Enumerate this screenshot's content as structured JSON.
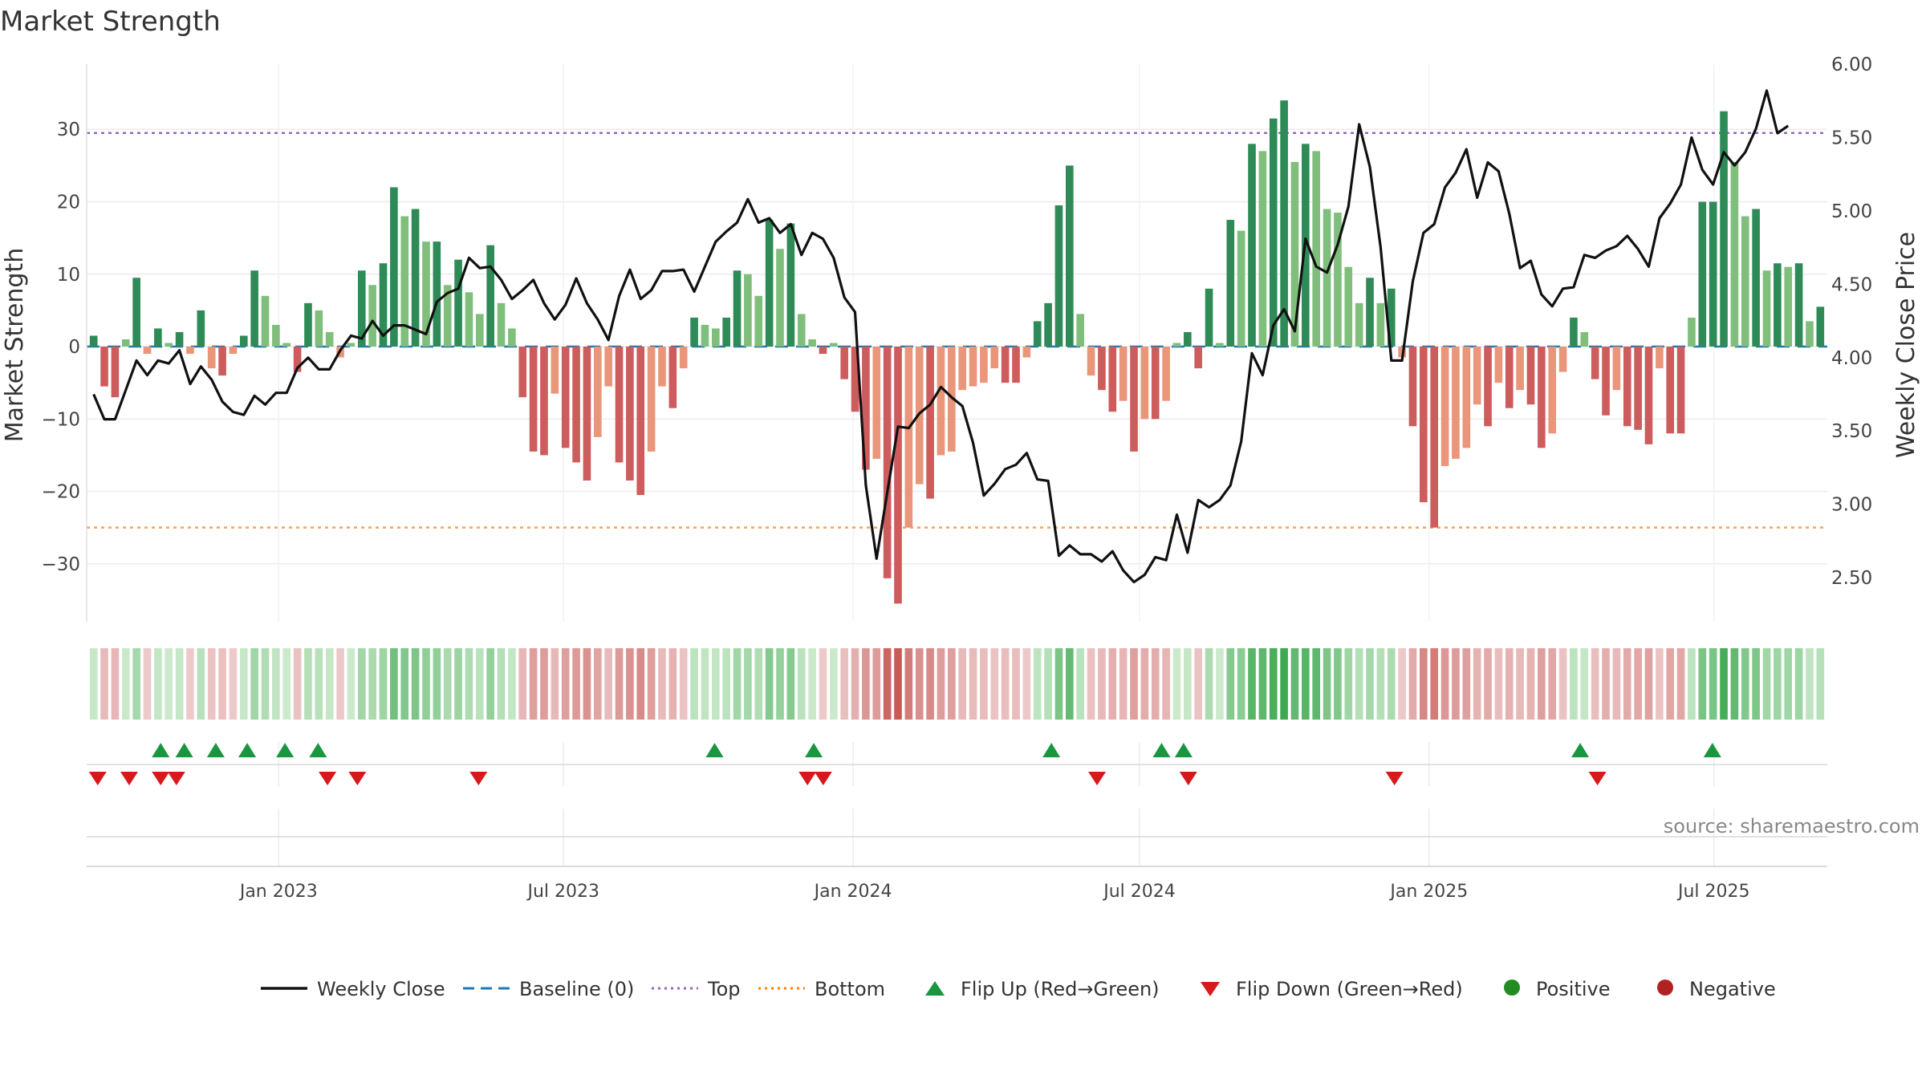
{
  "chart_data": {
    "type": "bar",
    "title": "Market Strength",
    "ylabel": "Market Strength",
    "y2label": "Weekly Close Price",
    "ylim": [
      -38,
      39
    ],
    "y2lim": [
      2.2,
      6.0
    ],
    "yticks": [
      30,
      20,
      10,
      0,
      -10,
      -20,
      -30
    ],
    "yticklabels": [
      "30",
      "20",
      "10",
      "0",
      "−10",
      "−20",
      "−30"
    ],
    "y2ticks": [
      6.0,
      5.5,
      5.0,
      4.5,
      4.0,
      3.5,
      3.0,
      2.5
    ],
    "y2ticklabels": [
      "6.00",
      "5.50",
      "5.00",
      "4.50",
      "4.00",
      "3.50",
      "3.00",
      "2.50"
    ],
    "x_start": "2022-09-02",
    "x_end": "2025-09-10",
    "x_ticks": [
      {
        "label": "Jan 2023",
        "date": "2023-01-01"
      },
      {
        "label": "Jul 2023",
        "date": "2023-07-01"
      },
      {
        "label": "Jan 2024",
        "date": "2024-01-01"
      },
      {
        "label": "Jul 2024",
        "date": "2024-07-01"
      },
      {
        "label": "Jan 2025",
        "date": "2025-01-01"
      },
      {
        "label": "Jul 2025",
        "date": "2025-07-01"
      }
    ],
    "top_level": 29.5,
    "bottom_level": -25,
    "baseline": 0,
    "strength": [
      1.5,
      -5.5,
      -7,
      1,
      9.5,
      -1,
      2.5,
      0.5,
      2,
      -1,
      5,
      -3,
      -4,
      -1,
      1.5,
      10.5,
      7,
      3,
      0.5,
      -3.5,
      6,
      5,
      2,
      -1.5,
      0.5,
      10.5,
      8.5,
      11.5,
      22,
      18,
      19,
      14.5,
      14.5,
      8.5,
      12,
      7.5,
      4.5,
      14,
      6,
      2.5,
      -7,
      -14.5,
      -15,
      -6.5,
      -14,
      -16,
      -18.5,
      -12.5,
      -5.5,
      -16,
      -18.5,
      -20.5,
      -14.5,
      -5.5,
      -8.5,
      -3,
      4,
      3,
      2.5,
      4,
      10.5,
      10,
      7,
      17.5,
      13.5,
      17,
      4.5,
      1,
      -1,
      0.5,
      -4.5,
      -9,
      -17,
      -15.5,
      -32,
      -35.5,
      -25,
      -19,
      -21,
      -15,
      -14.5,
      -6,
      -5.5,
      -5,
      -3,
      -5,
      -5,
      -1.5,
      3.5,
      6,
      19.5,
      25,
      4.5,
      -4,
      -6,
      -9,
      -7.5,
      -14.5,
      -10,
      -10,
      -7.5,
      0.5,
      2,
      -3,
      8,
      0.5,
      17.5,
      16,
      28,
      27,
      31.5,
      34,
      25.5,
      28,
      27,
      19,
      18.5,
      11,
      6,
      9.5,
      6,
      8,
      -1.5,
      -11,
      -21.5,
      -25,
      -16.5,
      -15.5,
      -14,
      -8,
      -11,
      -5,
      -8.5,
      -6,
      -8,
      -14,
      -12,
      -3.5,
      4,
      2,
      -4.5,
      -9.5,
      -6,
      -11,
      -11.5,
      -13.5,
      -3,
      -12,
      -12,
      4,
      20,
      20,
      32.5,
      25.5,
      18,
      19,
      10.5,
      11.5,
      11,
      11.5,
      3.5,
      5.5
    ],
    "weekly_close": [
      3.75,
      3.58,
      3.58,
      3.78,
      3.98,
      3.88,
      3.98,
      3.96,
      4.05,
      3.82,
      3.94,
      3.85,
      3.7,
      3.63,
      3.61,
      3.74,
      3.68,
      3.76,
      3.76,
      3.93,
      4,
      3.92,
      3.92,
      4.05,
      4.15,
      4.13,
      4.25,
      4.15,
      4.22,
      4.22,
      4.19,
      4.16,
      4.38,
      4.44,
      4.47,
      4.68,
      4.61,
      4.62,
      4.53,
      4.4,
      4.46,
      4.53,
      4.37,
      4.26,
      4.36,
      4.54,
      4.37,
      4.26,
      4.12,
      4.42,
      4.6,
      4.4,
      4.46,
      4.59,
      4.59,
      4.6,
      4.45,
      4.62,
      4.79,
      4.86,
      4.92,
      5.08,
      4.92,
      4.95,
      4.85,
      4.91,
      4.7,
      4.85,
      4.81,
      4.68,
      4.41,
      4.31,
      3.13,
      2.63,
      3.08,
      3.53,
      3.52,
      3.62,
      3.68,
      3.8,
      3.73,
      3.67,
      3.42,
      3.06,
      3.14,
      3.24,
      3.27,
      3.35,
      3.17,
      3.16,
      2.65,
      2.72,
      2.66,
      2.66,
      2.61,
      2.68,
      2.55,
      2.47,
      2.52,
      2.64,
      2.62,
      2.93,
      2.67,
      3.03,
      2.98,
      3.03,
      3.13,
      3.43,
      4.03,
      3.88,
      4.22,
      4.33,
      4.18,
      4.81,
      4.62,
      4.58,
      4.77,
      5.03,
      5.59,
      5.3,
      4.75,
      3.98,
      3.98,
      4.52,
      4.85,
      4.91,
      5.16,
      5.26,
      5.42,
      5.09,
      5.33,
      5.27,
      4.98,
      4.61,
      4.66,
      4.43,
      4.35,
      4.47,
      4.48,
      4.7,
      4.68,
      4.73,
      4.76,
      4.83,
      4.74,
      4.62,
      4.95,
      5.05,
      5.18,
      5.5,
      5.28,
      5.18,
      5.4,
      5.31,
      5.4,
      5.56,
      5.82,
      5.53,
      5.58
    ],
    "flip_up_dates": [
      "2022-10-18",
      "2022-11-02",
      "2022-11-22",
      "2022-12-12",
      "2023-01-05",
      "2023-01-26",
      "2023-10-05",
      "2023-12-07",
      "2024-05-06",
      "2024-07-15",
      "2024-07-29",
      "2025-04-07",
      "2025-06-30"
    ],
    "flip_down_dates": [
      "2022-09-08",
      "2022-09-28",
      "2022-10-18",
      "2022-10-28",
      "2023-02-01",
      "2023-02-20",
      "2023-05-08",
      "2023-12-03",
      "2023-12-13",
      "2024-06-04",
      "2024-08-01",
      "2024-12-10",
      "2025-04-18"
    ],
    "legend": [
      {
        "label": "Weekly Close",
        "kind": "line",
        "color": "#111111"
      },
      {
        "label": "Baseline (0)",
        "kind": "dash",
        "color": "#1f77b4"
      },
      {
        "label": "Top",
        "kind": "dot",
        "color": "#9467bd"
      },
      {
        "label": "Bottom",
        "kind": "dot",
        "color": "#ff7f0e"
      },
      {
        "label": "Flip Up (Red→Green)",
        "kind": "triangle-up",
        "color": "#1a9641"
      },
      {
        "label": "Flip Down (Green→Red)",
        "kind": "triangle-down",
        "color": "#d7191c"
      },
      {
        "label": "Positive",
        "kind": "dot-marker",
        "color": "#228b22"
      },
      {
        "label": "Negative",
        "kind": "dot-marker",
        "color": "#b22222"
      }
    ],
    "source": "source: sharemaestro.com",
    "colors": {
      "pos_strong": "#2e8b57",
      "pos_weak": "#7fbf7b",
      "neg_strong": "#cd5c5c",
      "neg_weak": "#e9967a",
      "top": "#9467bd",
      "bottom": "#f4a259",
      "baseline": "#1f77b4",
      "close": "#111111"
    }
  }
}
